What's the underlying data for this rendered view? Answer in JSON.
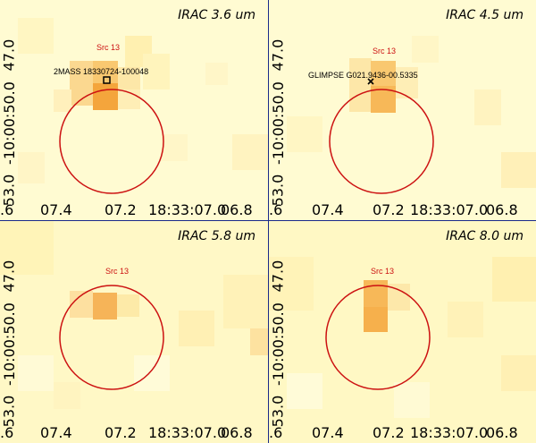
{
  "panels": [
    {
      "title": "IRAC 3.6 um",
      "src_label": "Src 13",
      "source_name": "2MASS 18330724-100048",
      "marker": "square-marker"
    },
    {
      "title": "IRAC 4.5 um",
      "src_label": "Src 13",
      "source_name": "GLIMPSE G021.9436-00.5335",
      "marker": "x-marker"
    },
    {
      "title": "IRAC 5.8 um",
      "src_label": "Src 13",
      "source_name": "",
      "marker": ""
    },
    {
      "title": "IRAC 8.0 um",
      "src_label": "Src 13",
      "source_name": "",
      "marker": ""
    }
  ],
  "y_ticks": [
    "53.0",
    "-10:00:50.0",
    "47.0"
  ],
  "x_ticks": [
    ".6",
    "07.4",
    "07.2",
    "18:33:07.0",
    "06.8"
  ],
  "colors": {
    "circle": "#cc1111",
    "divider": "#1a2a8a",
    "background": "#fffbd0",
    "bright_pixel": "#f4a53c"
  }
}
